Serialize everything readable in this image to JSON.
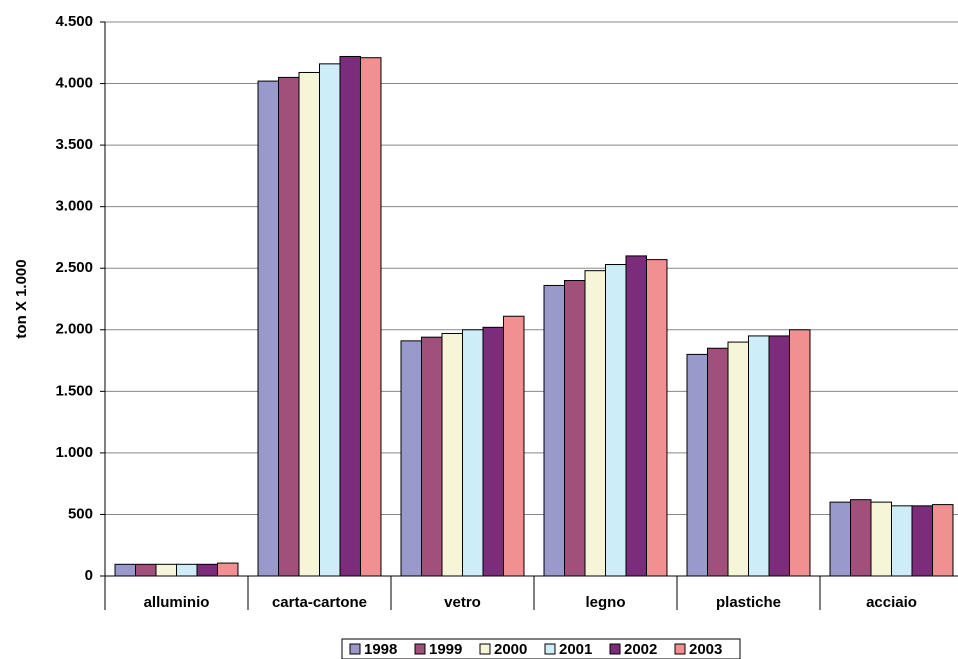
{
  "chart_data": {
    "type": "bar",
    "y_label": "ton X 1.000",
    "categories": [
      "alluminio",
      "carta-cartone",
      "vetro",
      "legno",
      "plastiche",
      "acciaio"
    ],
    "series": [
      {
        "name": "1998",
        "color": "#9999cc",
        "values": [
          95,
          4020,
          1910,
          2360,
          1800,
          600
        ]
      },
      {
        "name": "1999",
        "color": "#a0507a",
        "values": [
          95,
          4050,
          1940,
          2400,
          1850,
          620
        ]
      },
      {
        "name": "2000",
        "color": "#f7f5d8",
        "values": [
          95,
          4090,
          1970,
          2480,
          1900,
          600
        ]
      },
      {
        "name": "2001",
        "color": "#cdeef8",
        "values": [
          95,
          4160,
          2000,
          2530,
          1950,
          570
        ]
      },
      {
        "name": "2002",
        "color": "#7b2c7b",
        "values": [
          95,
          4220,
          2020,
          2600,
          1950,
          570
        ]
      },
      {
        "name": "2003",
        "color": "#f09090",
        "values": [
          105,
          4210,
          2110,
          2570,
          2000,
          580
        ]
      }
    ],
    "ylim": [
      0,
      4500
    ],
    "yticks": [
      0,
      500,
      {
        "value": 1000,
        "label": "1.000"
      },
      {
        "value": 1500,
        "label": "1.500"
      },
      {
        "value": 2000,
        "label": "2.000"
      },
      {
        "value": 2500,
        "label": "2.500"
      },
      {
        "value": 3000,
        "label": "3.000"
      },
      {
        "value": 3500,
        "label": "3.500"
      },
      {
        "value": 4000,
        "label": "4.000"
      },
      {
        "value": 4500,
        "label": "4.500"
      }
    ],
    "grid": true
  }
}
